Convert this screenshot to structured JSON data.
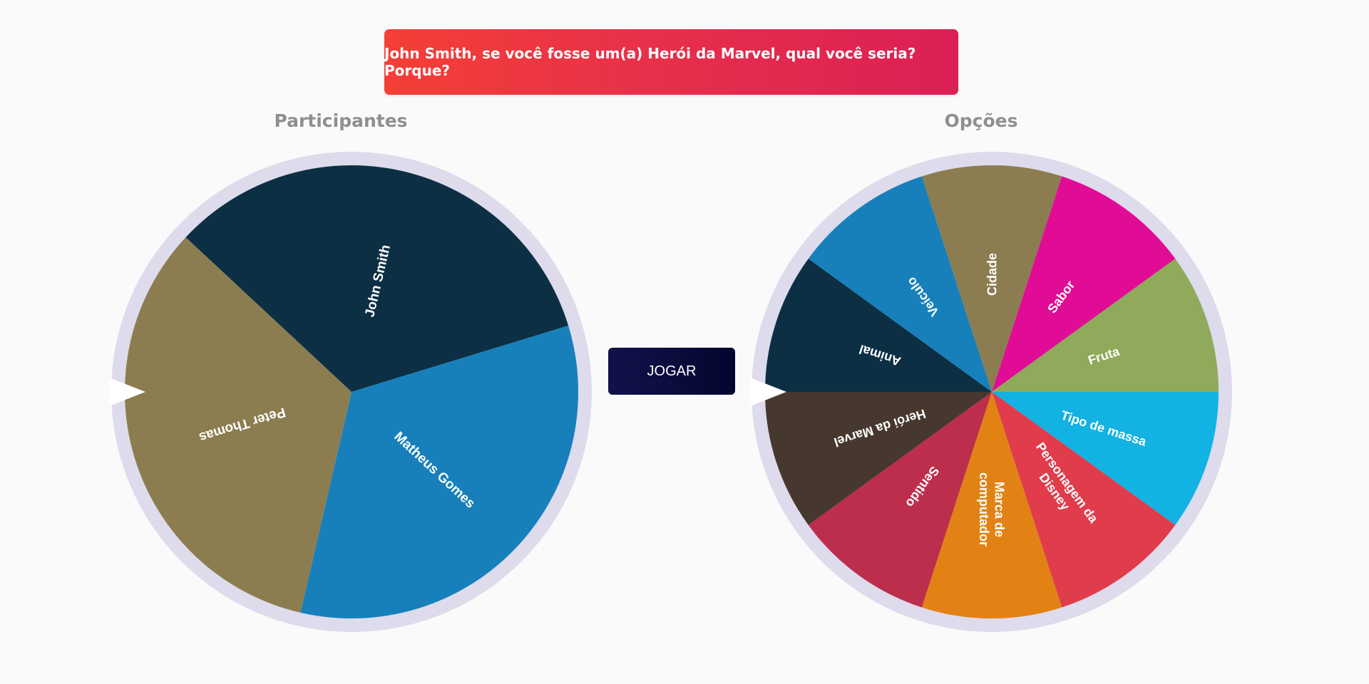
{
  "banner": {
    "text": "John Smith, se você fosse um(a) Herói da Marvel, qual você seria? Porque?"
  },
  "participants": {
    "title": "Participantes",
    "segments": [
      {
        "label": "John Smith",
        "color": "#0c2f43"
      },
      {
        "label": "Matheus Gomes",
        "color": "#1780ba"
      },
      {
        "label": "Peter Thomas",
        "color": "#8c7d50"
      }
    ]
  },
  "options": {
    "title": "Opções",
    "segments": [
      {
        "label": "Cidade",
        "color": "#8c7d50"
      },
      {
        "label": "Sabor",
        "color": "#e00c96"
      },
      {
        "label": "Fruta",
        "color": "#8faa5a"
      },
      {
        "label": "Tipo de massa",
        "color": "#12b2e2"
      },
      {
        "label": "Personagem da Disney",
        "color": "#e03c4c"
      },
      {
        "label": "Marca de computador",
        "color": "#e28214"
      },
      {
        "label": "Sentido",
        "color": "#bc2e4c"
      },
      {
        "label": "Herói da Marvel",
        "color": "#46382e"
      },
      {
        "label": "Animal",
        "color": "#0c2f43"
      },
      {
        "label": "Veículo",
        "color": "#1780ba"
      }
    ]
  },
  "play_button": {
    "label": "JOGAR"
  },
  "colors": {
    "rim": "#dddbec",
    "pointer": "#ffffff"
  }
}
